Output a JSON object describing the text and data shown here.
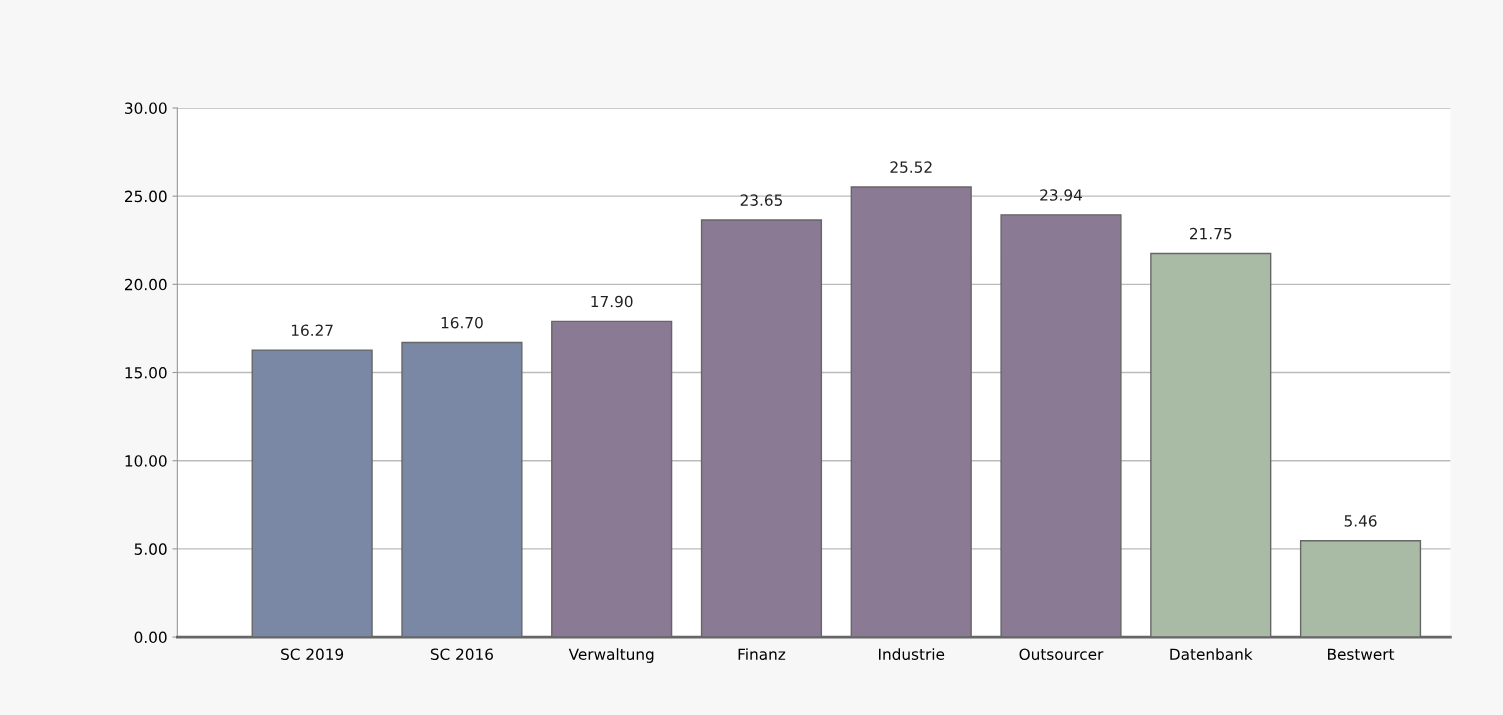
{
  "chart_data": {
    "type": "bar",
    "categories": [
      "SC 2019",
      "SC 2016",
      "Verwaltung",
      "Finanz",
      "Industrie",
      "Outsourcer",
      "Datenbank",
      "Bestwert"
    ],
    "values": [
      16.27,
      16.7,
      17.9,
      23.65,
      25.52,
      23.94,
      21.75,
      5.46
    ],
    "value_labels": [
      "16.27",
      "16.70",
      "17.90",
      "23.65",
      "25.52",
      "23.94",
      "21.75",
      "5.46"
    ],
    "colors": [
      "#7a88a6",
      "#7a88a6",
      "#8a7a94",
      "#8a7a94",
      "#8a7a94",
      "#8a7a94",
      "#a9bba5",
      "#a9bba5"
    ],
    "ylim": [
      0,
      30
    ],
    "yticks": [
      {
        "value": 0,
        "label": "0.00"
      },
      {
        "value": 5,
        "label": "5.00"
      },
      {
        "value": 10,
        "label": "10.00"
      },
      {
        "value": 15,
        "label": "15.00"
      },
      {
        "value": 20,
        "label": "20.00"
      },
      {
        "value": 25,
        "label": "25.00"
      },
      {
        "value": 30,
        "label": "30.00"
      }
    ],
    "grid": "y"
  }
}
